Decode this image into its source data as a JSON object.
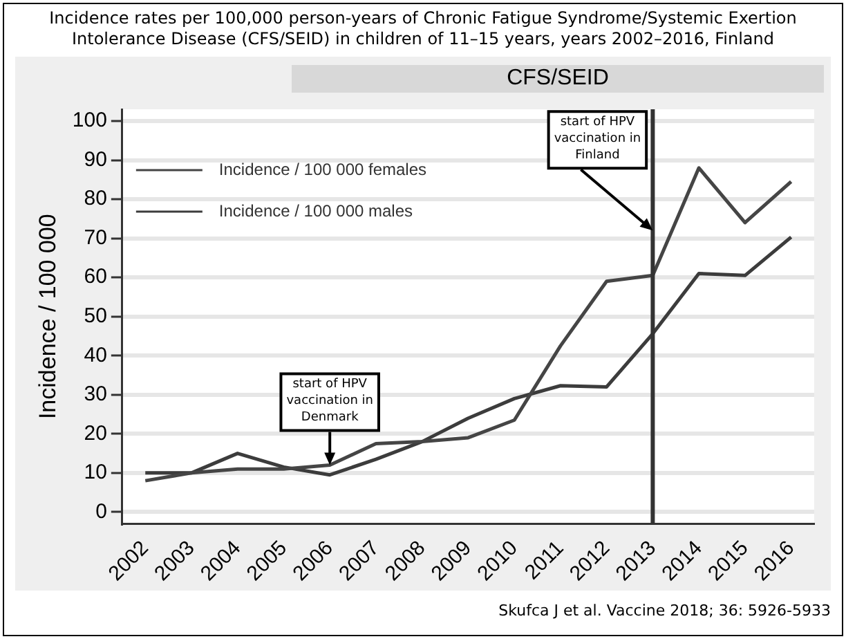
{
  "chart_data": {
    "type": "line",
    "title": "Incidence rates per 100,000 person-years of Chronic Fatigue Syndrome/Systemic Exertion Intolerance Disease (CFS/SEID) in children of 11–15 years, years 2002–2016, Finland",
    "subtitle": "CFS/SEID",
    "ylabel": "Incidence / 100 000",
    "categories": [
      "2002",
      "2003",
      "2004",
      "2005",
      "2006",
      "2007",
      "2008",
      "2009",
      "2010",
      "2011",
      "2012",
      "2013",
      "2014",
      "2015",
      "2016"
    ],
    "series": [
      {
        "name": "Incidence / 100 000 females",
        "color": "#454545",
        "values": [
          8,
          10,
          11,
          11,
          12,
          17.5,
          18,
          19,
          23.5,
          42.5,
          59,
          60.5,
          88,
          74,
          84.5
        ]
      },
      {
        "name": "Incidence / 100 000 males",
        "color": "#3c3c3c",
        "values": [
          10,
          10,
          15,
          11.5,
          9.5,
          13.5,
          18,
          24,
          29,
          32.3,
          32,
          45.6,
          61,
          60.5,
          70.3
        ]
      }
    ],
    "ylim": [
      -3,
      103
    ],
    "yticks": [
      0,
      10,
      20,
      30,
      40,
      50,
      60,
      70,
      80,
      90,
      100
    ],
    "grid": "y",
    "legend": "top left",
    "marker": "none",
    "line_style": "solid",
    "ref_lines": [
      {
        "axis": "x",
        "value": "2013",
        "color": "#333333"
      }
    ],
    "annotations": [
      {
        "text": "start of HPV vaccination in Denmark",
        "x": "2006",
        "y": 12
      },
      {
        "text": "start of HPV vaccination in Finland",
        "x": "2013",
        "y": 72
      },
      "Skufca J et al. Vaccine 2018; 36: 5926-5933"
    ]
  }
}
